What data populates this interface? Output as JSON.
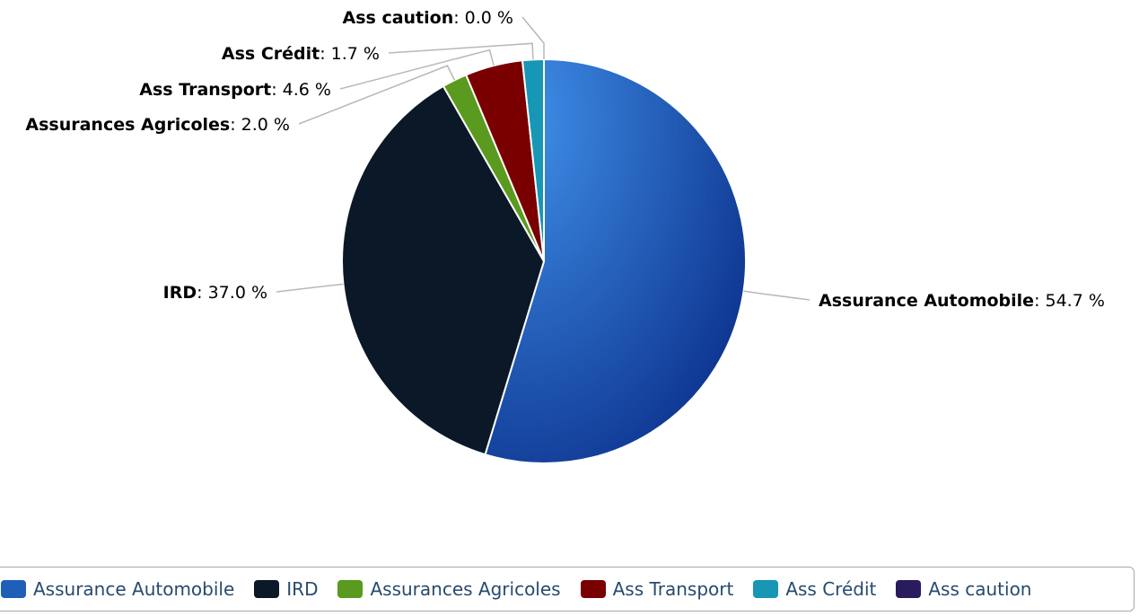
{
  "chart_data": {
    "type": "pie",
    "title": "",
    "unit": "%",
    "slices": [
      {
        "name": "Assurance Automobile",
        "value": 54.7,
        "label": "54.7 %",
        "color": "#1f5fb8"
      },
      {
        "name": "IRD",
        "value": 37.0,
        "label": "37.0 %",
        "color": "#0b1827"
      },
      {
        "name": "Assurances Agricoles",
        "value": 2.0,
        "label": "2.0 %",
        "color": "#5a9a1e"
      },
      {
        "name": "Ass Transport",
        "value": 4.6,
        "label": "4.6 %",
        "color": "#7a0000"
      },
      {
        "name": "Ass Crédit",
        "value": 1.7,
        "label": "1.7 %",
        "color": "#1796b5"
      },
      {
        "name": "Ass caution",
        "value": 0.0,
        "label": "0.0 %",
        "color": "#2a1a5e"
      }
    ],
    "legend_position": "bottom"
  },
  "legend": [
    {
      "label": "Assurance Automobile",
      "color": "#1f5fb8"
    },
    {
      "label": "IRD",
      "color": "#0b1827"
    },
    {
      "label": "Assurances Agricoles",
      "color": "#5a9a1e"
    },
    {
      "label": "Ass Transport",
      "color": "#7a0000"
    },
    {
      "label": "Ass Crédit",
      "color": "#1796b5"
    },
    {
      "label": "Ass caution",
      "color": "#2a1a5e"
    }
  ]
}
